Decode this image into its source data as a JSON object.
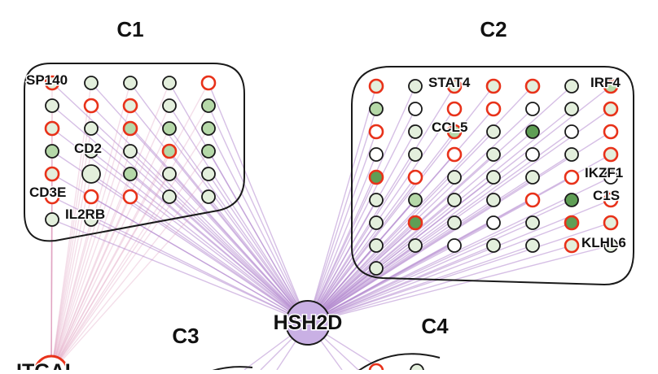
{
  "colors": {
    "edge_hub": "#b48bd0",
    "edge_itgal": "#e0a0c0",
    "node_border": "#1a1a1a",
    "node_border_highlight": "#e8321a",
    "node_fill_light": "#e3efdc",
    "node_fill_medium": "#b5d8a8",
    "node_fill_dark": "#5f9e55",
    "hub_fill": "#c9b0e4"
  },
  "hub": {
    "label": "HSH2D"
  },
  "itgal": {
    "label": "ITGAL"
  },
  "clusters": {
    "c1": {
      "title": "C1",
      "gene_labels": [
        "SP140",
        "CD2",
        "CD3E",
        "IL2RB"
      ]
    },
    "c2": {
      "title": "C2",
      "gene_labels": [
        "STAT4",
        "IRF4",
        "CCL5",
        "IKZF1",
        "C1S",
        "KLHL6"
      ]
    },
    "c3": {
      "title": "C3"
    },
    "c4": {
      "title": "C4"
    }
  }
}
